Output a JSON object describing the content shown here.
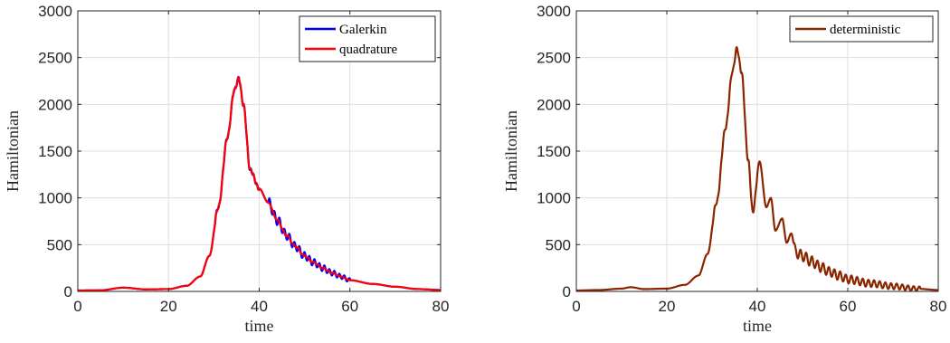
{
  "chart_data": [
    {
      "type": "line",
      "xlabel": "time",
      "ylabel": "Hamiltonian",
      "xlim": [
        0,
        80
      ],
      "ylim": [
        0,
        3000
      ],
      "xticks": [
        "0",
        "20",
        "40",
        "60",
        "80"
      ],
      "yticks": [
        "0",
        "500",
        "1000",
        "1500",
        "2000",
        "2500",
        "3000"
      ],
      "grid": true,
      "legend_position": "top-right",
      "series": [
        {
          "name": "Galerkin",
          "color": "#0000ff",
          "x": [
            0,
            5,
            10,
            15,
            20,
            24,
            27,
            29,
            31,
            33,
            34.5,
            35.5,
            36.5,
            38,
            40,
            42,
            44,
            46,
            48,
            50,
            52,
            54,
            56,
            58,
            60,
            65,
            70,
            75,
            80
          ],
          "y": [
            10,
            12,
            40,
            22,
            25,
            60,
            160,
            380,
            900,
            1650,
            2150,
            2280,
            2000,
            1300,
            1100,
            950,
            760,
            600,
            480,
            380,
            310,
            250,
            200,
            160,
            120,
            80,
            50,
            25,
            15
          ],
          "oscillation": {
            "start": 42,
            "end": 60,
            "period": 1.1,
            "amplitude": 55
          }
        },
        {
          "name": "quadrature",
          "color": "#ff0000",
          "x": [
            0,
            5,
            10,
            15,
            20,
            24,
            27,
            29,
            31,
            33,
            34.5,
            35.5,
            36.5,
            38,
            40,
            42,
            44,
            46,
            48,
            50,
            52,
            54,
            56,
            58,
            60,
            65,
            70,
            75,
            80
          ],
          "y": [
            10,
            12,
            40,
            22,
            25,
            60,
            160,
            380,
            900,
            1650,
            2150,
            2280,
            2000,
            1300,
            1100,
            950,
            760,
            600,
            480,
            380,
            310,
            250,
            200,
            160,
            120,
            80,
            50,
            25,
            15
          ],
          "oscillation": {
            "start": 44,
            "end": 58,
            "period": 1.1,
            "amplitude": 12
          }
        }
      ]
    },
    {
      "type": "line",
      "xlabel": "time",
      "ylabel": "Hamiltonian",
      "xlim": [
        0,
        80
      ],
      "ylim": [
        0,
        3000
      ],
      "xticks": [
        "0",
        "20",
        "40",
        "60",
        "80"
      ],
      "yticks": [
        "0",
        "500",
        "1000",
        "1500",
        "2000",
        "2500",
        "3000"
      ],
      "grid": true,
      "legend_position": "top-right",
      "series": [
        {
          "name": "deterministic",
          "color": "#8b2500",
          "x": [
            0,
            5,
            10,
            12,
            15,
            20,
            24,
            27,
            29,
            31,
            33,
            34.5,
            35.5,
            36.5,
            38,
            39,
            40.5,
            42,
            43,
            44,
            45.5,
            46.5,
            47.5,
            48.5,
            50,
            52,
            54,
            56,
            58,
            60,
            65,
            70,
            75,
            80
          ],
          "y": [
            10,
            15,
            30,
            45,
            25,
            30,
            70,
            170,
            400,
            950,
            1750,
            2350,
            2600,
            2350,
            1400,
            850,
            1390,
            900,
            1000,
            650,
            780,
            520,
            620,
            420,
            380,
            320,
            260,
            210,
            170,
            130,
            85,
            55,
            30,
            15
          ],
          "oscillation": {
            "start": 48,
            "end": 76,
            "period": 1.25,
            "amplitude": 60
          }
        }
      ]
    }
  ]
}
